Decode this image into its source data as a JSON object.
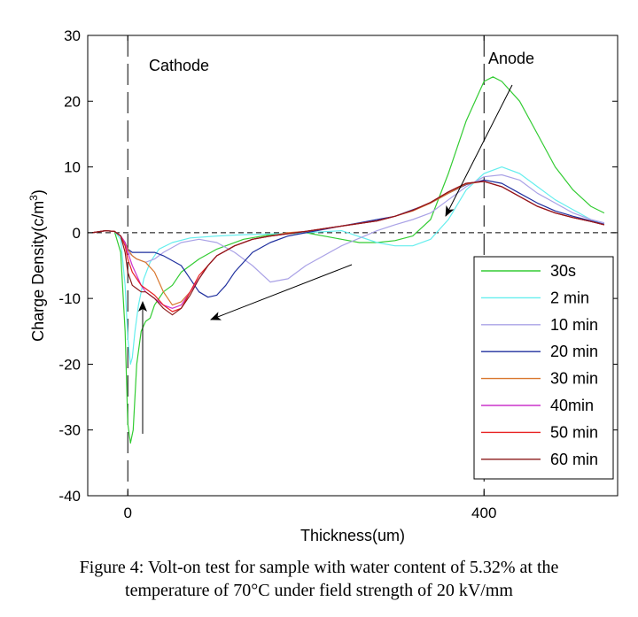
{
  "chart_data": {
    "type": "line",
    "xlabel": "Thickness(um)",
    "ylabel": "Charge Density(c/m³)",
    "ylabel_main": "Charge Density(c/m",
    "ylabel_sup": "3",
    "ylabel_close": ")",
    "xlim": [
      -45,
      550
    ],
    "ylim": [
      -40,
      30
    ],
    "xticks": [
      0,
      400
    ],
    "yticks": [
      30,
      20,
      10,
      0,
      -10,
      -20,
      -30,
      -40
    ],
    "grid": false,
    "legend_position": "bottom-right",
    "annotations": {
      "cathode": "Cathode",
      "anode": "Anode"
    },
    "series": [
      {
        "name": "30s",
        "color": "#33cc33",
        "x": [
          -40,
          -25,
          -15,
          -8,
          -3,
          0,
          3,
          6,
          10,
          15,
          20,
          25,
          30,
          40,
          50,
          60,
          70,
          80,
          100,
          130,
          160,
          200,
          240,
          260,
          280,
          300,
          320,
          340,
          360,
          380,
          400,
          410,
          420,
          440,
          460,
          480,
          500,
          520,
          535
        ],
        "y": [
          0,
          0.3,
          0.2,
          -3,
          -15,
          -29,
          -32,
          -30,
          -20,
          -15,
          -13.5,
          -13,
          -11,
          -9,
          -8,
          -6,
          -5,
          -4,
          -2.5,
          -1,
          -0.3,
          0,
          -1,
          -1.5,
          -1.5,
          -1.2,
          -0.5,
          2,
          9,
          17,
          23,
          23.7,
          23,
          20,
          15,
          10,
          6.5,
          4,
          3
        ]
      },
      {
        "name": "2 min",
        "color": "#66eeee",
        "x": [
          -40,
          -25,
          -15,
          -8,
          -3,
          0,
          3,
          5,
          8,
          12,
          18,
          25,
          35,
          50,
          70,
          100,
          130,
          160,
          200,
          240,
          280,
          300,
          320,
          340,
          360,
          380,
          400,
          420,
          440,
          460,
          480,
          500,
          520,
          535
        ],
        "y": [
          0,
          0.3,
          0.2,
          -1,
          -8,
          -16,
          -20,
          -19,
          -15,
          -11,
          -7,
          -4.5,
          -2.5,
          -1.5,
          -0.8,
          -0.5,
          -0.3,
          -0.2,
          0,
          0.3,
          -1.5,
          -2,
          -2,
          -1,
          2,
          6.5,
          9,
          10,
          9,
          7,
          5,
          3.5,
          2,
          1.2
        ]
      },
      {
        "name": "10 min",
        "color": "#aaa2e6",
        "x": [
          -40,
          -25,
          -15,
          -8,
          -3,
          0,
          5,
          10,
          20,
          30,
          40,
          60,
          80,
          100,
          120,
          140,
          160,
          180,
          200,
          240,
          280,
          300,
          320,
          340,
          360,
          380,
          400,
          420,
          440,
          460,
          480,
          500,
          520,
          535
        ],
        "y": [
          0,
          0.3,
          0.2,
          -0.5,
          -2,
          -3,
          -3.5,
          -4,
          -4.5,
          -4,
          -3,
          -1.5,
          -1,
          -1.5,
          -3,
          -5,
          -7.5,
          -7,
          -5,
          -2,
          0.3,
          1.2,
          2,
          3,
          5,
          7,
          8.5,
          8.8,
          8,
          6,
          4.5,
          3,
          2,
          1.5
        ]
      },
      {
        "name": "20 min",
        "color": "#1f2f9e",
        "x": [
          -40,
          -25,
          -15,
          -8,
          -3,
          0,
          5,
          10,
          20,
          30,
          40,
          60,
          70,
          80,
          90,
          100,
          110,
          120,
          140,
          160,
          180,
          200,
          220,
          240,
          260,
          280,
          300,
          320,
          340,
          360,
          380,
          400,
          420,
          440,
          460,
          480,
          500,
          520,
          535
        ],
        "y": [
          0,
          0.3,
          0.2,
          -0.5,
          -1.5,
          -2.5,
          -3,
          -3,
          -3,
          -3,
          -3.5,
          -5,
          -7,
          -9,
          -9.8,
          -9.5,
          -8,
          -6,
          -3,
          -1.5,
          -0.5,
          0,
          0.5,
          1,
          1.5,
          2,
          2.5,
          3.5,
          4.5,
          6,
          7.3,
          8,
          7.5,
          6,
          4.5,
          3.3,
          2.5,
          1.8,
          1.3
        ]
      },
      {
        "name": "30 min",
        "color": "#d9772e",
        "x": [
          -40,
          -25,
          -15,
          -8,
          -3,
          0,
          5,
          10,
          20,
          30,
          40,
          50,
          60,
          70,
          80,
          90,
          100,
          120,
          140,
          160,
          180,
          200,
          240,
          280,
          300,
          320,
          340,
          360,
          380,
          400,
          420,
          440,
          460,
          480,
          500,
          520,
          535
        ],
        "y": [
          0,
          0.3,
          0.2,
          -0.5,
          -1.5,
          -2.5,
          -3.5,
          -4,
          -4.5,
          -6,
          -9,
          -11,
          -10.5,
          -9,
          -7,
          -5,
          -3.5,
          -2,
          -1,
          -0.5,
          0,
          0.2,
          1,
          1.8,
          2.5,
          3.3,
          4.5,
          6,
          7.4,
          7.8,
          7,
          5.5,
          4,
          3,
          2.3,
          1.7,
          1.2
        ]
      },
      {
        "name": "40min",
        "color": "#cc33cc",
        "x": [
          -40,
          -25,
          -15,
          -8,
          -3,
          0,
          5,
          10,
          15,
          20,
          30,
          40,
          50,
          60,
          70,
          80,
          90,
          100,
          120,
          140,
          160,
          200,
          240,
          280,
          300,
          320,
          340,
          360,
          380,
          400,
          420,
          440,
          460,
          480,
          500,
          520,
          535
        ],
        "y": [
          0,
          0.3,
          0.2,
          -0.5,
          -1.5,
          -3,
          -5,
          -6.5,
          -8,
          -9,
          -10,
          -11,
          -11.5,
          -11,
          -9,
          -7,
          -5,
          -3.5,
          -2,
          -1,
          -0.5,
          0.2,
          1,
          1.8,
          2.5,
          3.4,
          4.6,
          6.2,
          7.5,
          7.8,
          7,
          5.5,
          4,
          3,
          2.3,
          1.7,
          1.2
        ]
      },
      {
        "name": "50 min",
        "color": "#e82020",
        "x": [
          -40,
          -25,
          -15,
          -8,
          -3,
          0,
          5,
          10,
          15,
          20,
          30,
          40,
          50,
          60,
          70,
          80,
          90,
          100,
          120,
          140,
          160,
          200,
          240,
          280,
          300,
          320,
          340,
          360,
          380,
          400,
          420,
          440,
          460,
          480,
          500,
          520,
          535
        ],
        "y": [
          0,
          0.3,
          0.2,
          -0.5,
          -2,
          -4,
          -6,
          -7,
          -8,
          -8.5,
          -9.5,
          -11,
          -12,
          -11.5,
          -9,
          -6.5,
          -5,
          -3.5,
          -2,
          -1,
          -0.5,
          0.2,
          1,
          1.8,
          2.5,
          3.4,
          4.6,
          6.2,
          7.5,
          7.8,
          7,
          5.5,
          4,
          3,
          2.3,
          1.7,
          1.2
        ]
      },
      {
        "name": "60 min",
        "color": "#8b1a1a",
        "x": [
          -40,
          -25,
          -15,
          -8,
          -3,
          0,
          5,
          10,
          15,
          20,
          30,
          40,
          50,
          60,
          70,
          80,
          90,
          100,
          120,
          140,
          160,
          200,
          240,
          280,
          300,
          320,
          340,
          360,
          380,
          400,
          420,
          440,
          460,
          480,
          500,
          520,
          535
        ],
        "y": [
          0,
          0.3,
          0.2,
          -0.5,
          -3,
          -6,
          -8,
          -8.5,
          -9,
          -9,
          -10,
          -11.5,
          -12.5,
          -11.5,
          -9.5,
          -7,
          -5,
          -3.5,
          -2,
          -1,
          -0.5,
          0.2,
          1,
          1.8,
          2.5,
          3.4,
          4.6,
          6.2,
          7.5,
          7.8,
          7,
          5.5,
          4,
          3,
          2.3,
          1.7,
          1.2
        ]
      }
    ]
  },
  "caption": {
    "line1": "Figure 4: Volt-on test for sample with water content of 5.32% at the",
    "line2": "temperature of 70°C under field strength of 20 kV/mm"
  }
}
